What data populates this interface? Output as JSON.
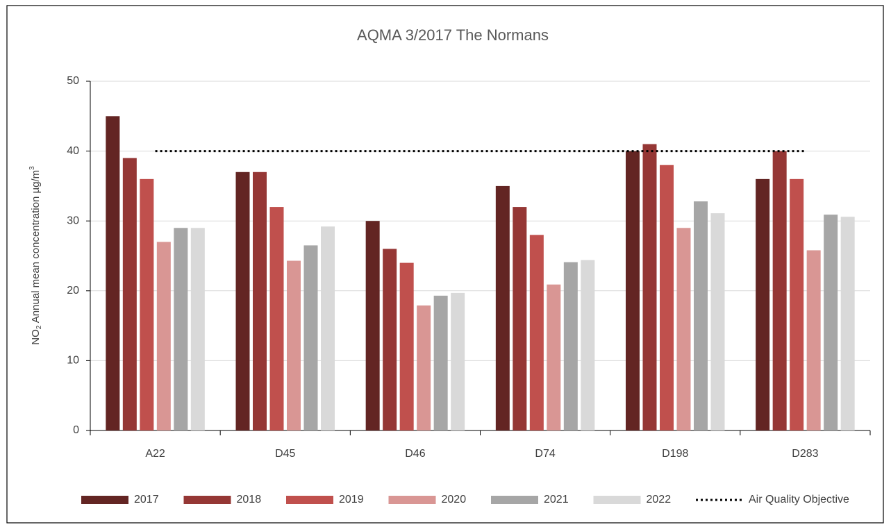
{
  "chart_data": {
    "type": "bar",
    "title": "AQMA 3/2017 The Normans",
    "y_label": [
      "NO",
      "2",
      " Annual mean concentration µg/m",
      "3"
    ],
    "categories": [
      "A22",
      "D45",
      "D46",
      "D74",
      "D198",
      "D283"
    ],
    "series": [
      {
        "name": "2017",
        "color": "#632523",
        "values": [
          45,
          37,
          30,
          35,
          40,
          36
        ]
      },
      {
        "name": "2018",
        "color": "#953735",
        "values": [
          39,
          37,
          26,
          32,
          41,
          40
        ]
      },
      {
        "name": "2019",
        "color": "#c0504d",
        "values": [
          36,
          32,
          24,
          28,
          38,
          36
        ]
      },
      {
        "name": "2020",
        "color": "#d99694",
        "values": [
          27,
          24.3,
          17.9,
          20.9,
          29,
          25.8
        ]
      },
      {
        "name": "2021",
        "color": "#a6a6a6",
        "values": [
          29,
          26.5,
          19.3,
          24.1,
          32.8,
          30.9
        ]
      },
      {
        "name": "2022",
        "color": "#d9d9d9",
        "values": [
          29,
          29.2,
          19.7,
          24.4,
          31.1,
          30.6
        ]
      },
      {
        "name": "Air Quality Objective",
        "type": "line",
        "style": "dotted",
        "color": "#000000",
        "values": [
          40,
          40,
          40,
          40,
          40,
          40
        ]
      }
    ],
    "ylim": [
      0,
      50
    ],
    "yticks": [
      0,
      10,
      20,
      30,
      40,
      50
    ],
    "grid": true,
    "legend": "bottom"
  }
}
